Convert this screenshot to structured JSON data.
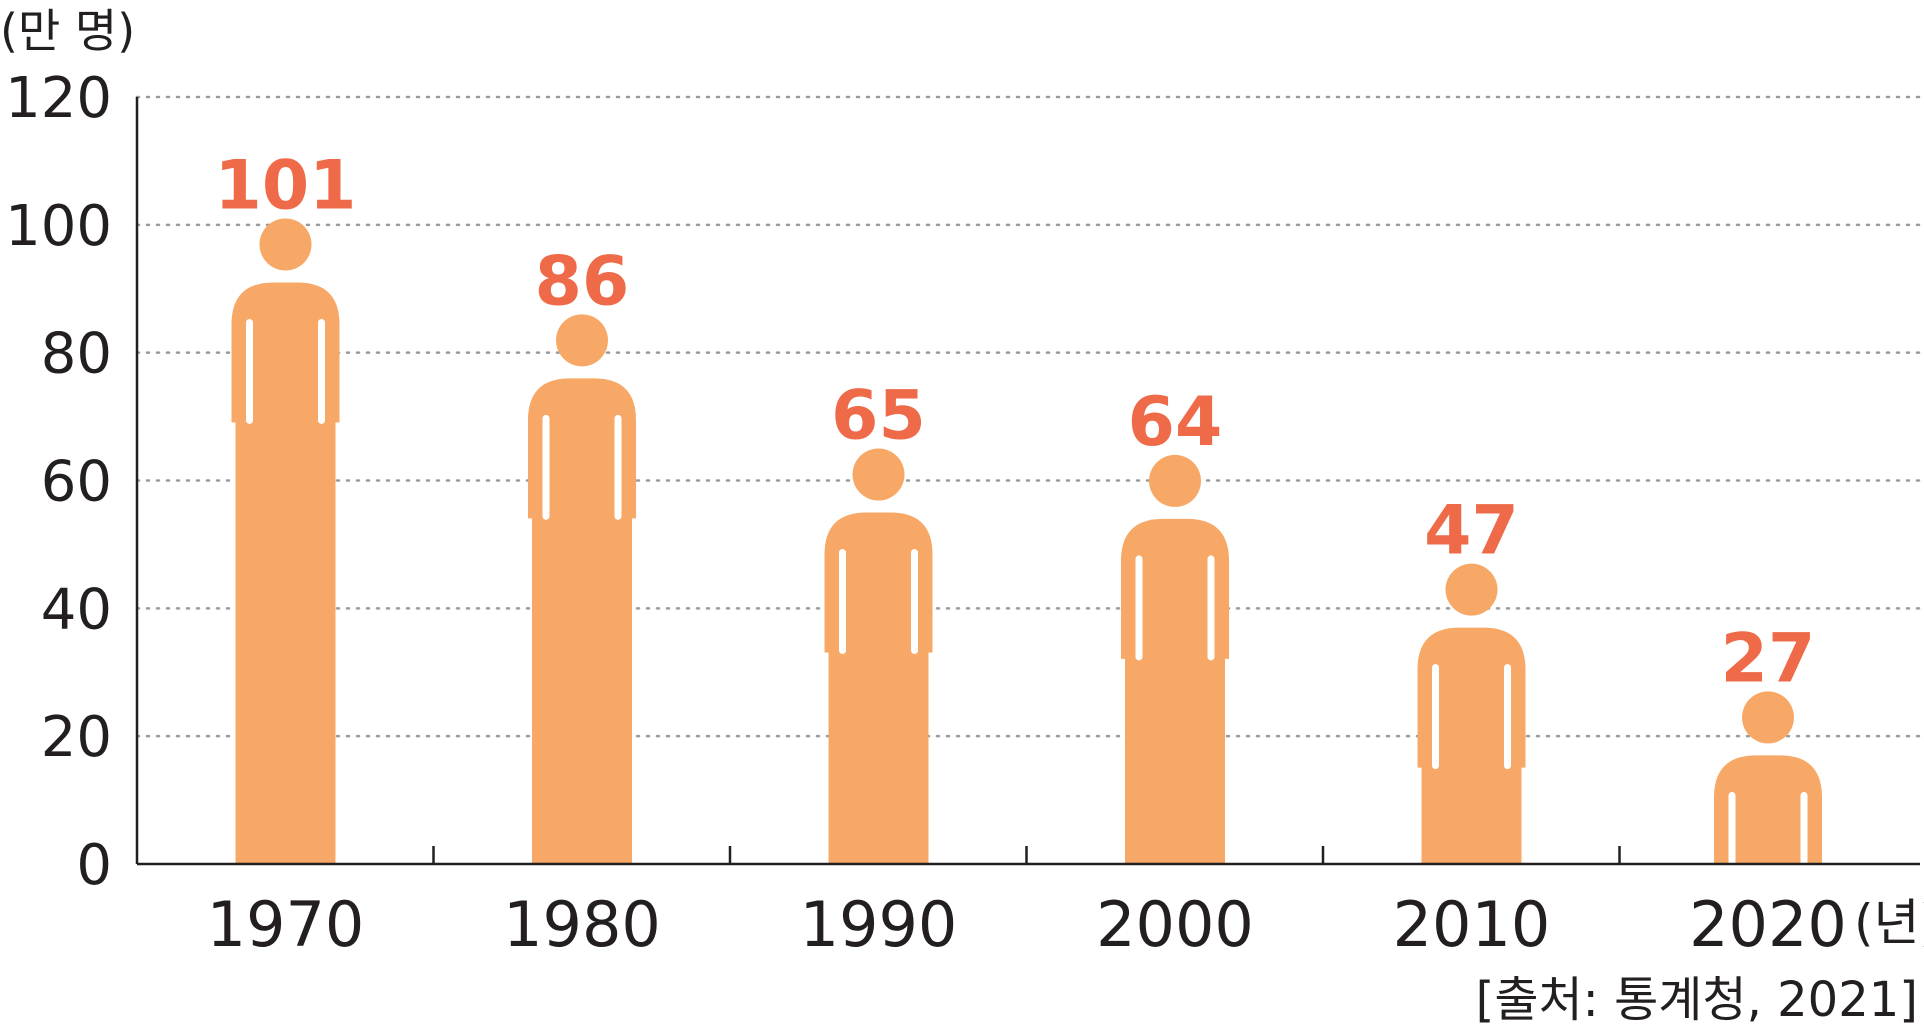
{
  "chart_data": {
    "type": "bar",
    "ylabel": "(만 명)",
    "xunit": "(년)",
    "source": "[출처: 통계청, 2021]",
    "categories": [
      "1970",
      "1980",
      "1990",
      "2000",
      "2010",
      "2020"
    ],
    "values": [
      101,
      86,
      65,
      64,
      47,
      27
    ],
    "value_labels": [
      "101",
      "86",
      "65",
      "64",
      "47",
      "27"
    ],
    "ylim": [
      0,
      120
    ],
    "yticks": [
      0,
      20,
      40,
      60,
      80,
      100,
      120
    ],
    "ytick_labels": [
      "0",
      "20",
      "40",
      "60",
      "80",
      "100",
      "120"
    ],
    "grid": true,
    "bar_color": "#f7a866",
    "label_color": "#ef6a48"
  }
}
